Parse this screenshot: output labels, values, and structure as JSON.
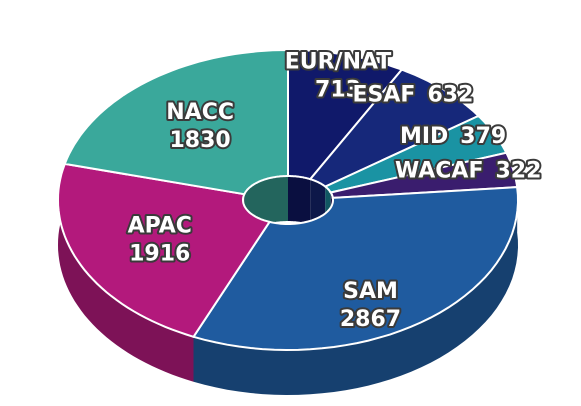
{
  "chart_data": {
    "type": "pie",
    "categories": [
      "EUR/NAT",
      "ESAF",
      "MID",
      "WACAF",
      "SAM",
      "APAC",
      "NACC"
    ],
    "values": [
      713,
      632,
      379,
      322,
      2867,
      1916,
      1830
    ],
    "colors": [
      "#10196a",
      "#16287a",
      "#1a93a3",
      "#3a1d6e",
      "#1f5b9f",
      "#b3197c",
      "#3aa89b"
    ]
  }
}
